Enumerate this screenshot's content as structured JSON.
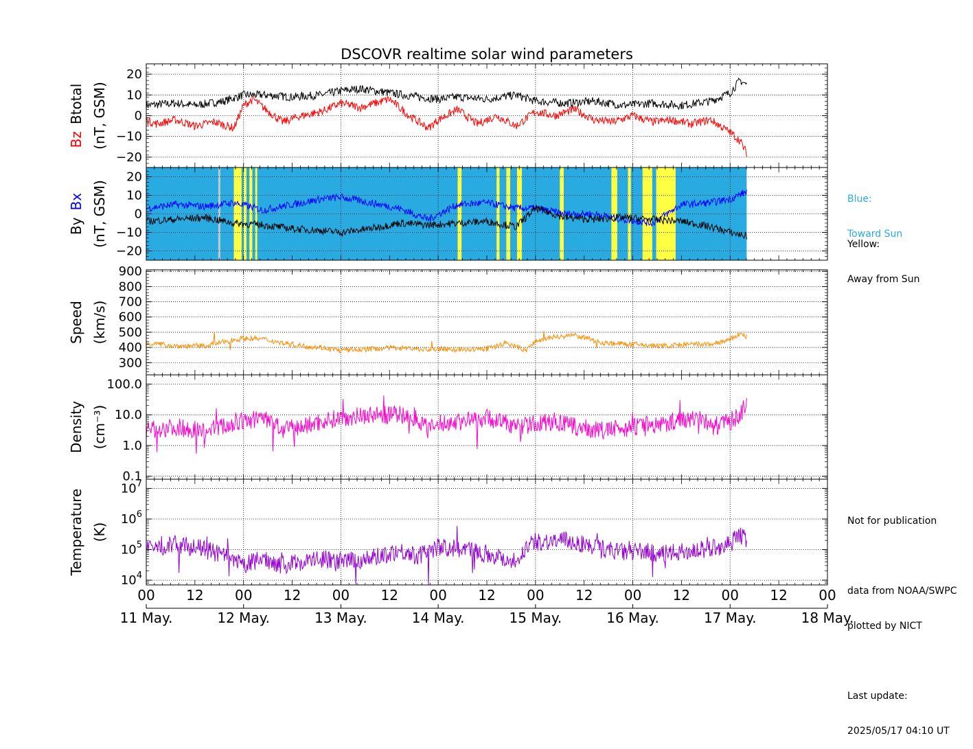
{
  "chart_data": {
    "type": "line",
    "title": "DSCOVR realtime solar wind parameters",
    "x_range_days": [
      0,
      7
    ],
    "data_end_day": 6.17,
    "hour_tick_labels": [
      "00",
      "12",
      "00",
      "12",
      "00",
      "12",
      "00",
      "12",
      "00",
      "12",
      "00",
      "12",
      "00",
      "12",
      "00"
    ],
    "date_labels": [
      "11 May.",
      "12 May.",
      "13 May.",
      "14 May.",
      "15 May.",
      "16 May.",
      "17 May.",
      "18 May."
    ],
    "panels": [
      {
        "id": "mag",
        "ylabel_line1": [
          "Bz",
          "Btotal"
        ],
        "ylabel_line2": "(nT, GSM)",
        "ylim": [
          -25,
          25
        ],
        "yticks": [
          -20,
          -10,
          0,
          10,
          20
        ],
        "scale": "linear",
        "series": [
          {
            "name": "Btotal",
            "color": "#000000",
            "x": [
              0,
              0.3,
              0.5,
              0.8,
              1.0,
              1.2,
              1.5,
              1.8,
              2.0,
              2.2,
              2.5,
              2.8,
              3.0,
              3.2,
              3.5,
              3.8,
              4.0,
              4.3,
              4.6,
              4.9,
              5.2,
              5.5,
              5.8,
              6.0,
              6.1,
              6.17
            ],
            "y": [
              5,
              6,
              5,
              7,
              10,
              10,
              9,
              10,
              12,
              13,
              11,
              9,
              8,
              9,
              8,
              10,
              7,
              6,
              7,
              5,
              6,
              5,
              7,
              11,
              17,
              15
            ]
          },
          {
            "name": "Bz",
            "color": "#ff0000",
            "x": [
              0,
              0.1,
              0.3,
              0.5,
              0.7,
              0.9,
              1.0,
              1.1,
              1.2,
              1.4,
              1.6,
              1.8,
              2.0,
              2.2,
              2.5,
              2.7,
              2.9,
              3.0,
              3.2,
              3.4,
              3.6,
              3.8,
              4.0,
              4.2,
              4.4,
              4.6,
              4.8,
              5.0,
              5.2,
              5.4,
              5.6,
              5.8,
              6.0,
              6.1,
              6.17
            ],
            "y": [
              -2,
              -4,
              -2,
              -5,
              -3,
              -6,
              5,
              8,
              4,
              -3,
              0,
              2,
              6,
              4,
              8,
              0,
              -6,
              -2,
              3,
              -4,
              0,
              -5,
              2,
              0,
              3,
              -2,
              -3,
              0,
              -3,
              -2,
              -4,
              -2,
              -8,
              -12,
              -18
            ]
          }
        ]
      },
      {
        "id": "bxby",
        "ylabel_line1": [
          "By",
          "Bx"
        ],
        "ylabel_line2": "(nT, GSM)",
        "ylim": [
          -25,
          25
        ],
        "yticks": [
          -20,
          -10,
          0,
          10,
          20
        ],
        "scale": "linear",
        "sector_colors": {
          "toward": "#29abe2",
          "away": "#ffff44",
          "unknown": "#c8c8c8"
        },
        "away_intervals": [
          [
            0.9,
            0.98
          ],
          [
            1.0,
            1.03
          ],
          [
            1.06,
            1.09
          ],
          [
            1.12,
            1.14
          ],
          [
            3.2,
            3.24
          ],
          [
            3.6,
            3.63
          ],
          [
            3.7,
            3.74
          ],
          [
            3.81,
            3.86
          ],
          [
            4.25,
            4.29
          ],
          [
            4.78,
            4.84
          ],
          [
            4.95,
            4.98
          ],
          [
            5.1,
            5.2
          ],
          [
            5.24,
            5.44
          ]
        ],
        "series": [
          {
            "name": "Bx",
            "color": "#0000ff",
            "x": [
              0,
              0.3,
              0.6,
              0.9,
              1.2,
              1.5,
              1.8,
              2.0,
              2.3,
              2.6,
              2.9,
              3.2,
              3.5,
              3.8,
              4.0,
              4.3,
              4.6,
              4.9,
              5.2,
              5.5,
              5.8,
              6.0,
              6.17
            ],
            "y": [
              3,
              5,
              4,
              6,
              2,
              5,
              8,
              9,
              6,
              3,
              -3,
              5,
              6,
              3,
              3,
              0,
              0,
              -3,
              -5,
              5,
              6,
              8,
              12
            ]
          },
          {
            "name": "By",
            "color": "#000000",
            "x": [
              0,
              0.3,
              0.6,
              0.9,
              1.2,
              1.5,
              1.8,
              2.0,
              2.3,
              2.6,
              2.9,
              3.2,
              3.5,
              3.8,
              4.0,
              4.3,
              4.6,
              4.9,
              5.2,
              5.5,
              5.8,
              6.0,
              6.17
            ],
            "y": [
              -4,
              -3,
              -2,
              -5,
              -6,
              -8,
              -9,
              -10,
              -8,
              -5,
              -6,
              -5,
              -4,
              -7,
              3,
              -2,
              -3,
              -2,
              -3,
              -4,
              -7,
              -10,
              -12
            ]
          }
        ]
      },
      {
        "id": "speed",
        "ylabel_line1": "Speed",
        "ylabel_line2": "(km/s)",
        "ylim": [
          220,
          910
        ],
        "yticks": [
          300,
          400,
          500,
          600,
          700,
          800,
          900
        ],
        "scale": "linear",
        "series": [
          {
            "name": "Speed",
            "color": "#ff8c00",
            "x": [
              0,
              0.3,
              0.6,
              0.9,
              1.0,
              1.2,
              1.4,
              1.6,
              1.8,
              2.0,
              2.3,
              2.6,
              2.9,
              3.0,
              3.3,
              3.5,
              3.7,
              3.9,
              4.0,
              4.2,
              4.4,
              4.7,
              5.0,
              5.3,
              5.6,
              5.8,
              6.0,
              6.1,
              6.17
            ],
            "y": [
              430,
              410,
              410,
              450,
              460,
              455,
              430,
              410,
              400,
              380,
              390,
              400,
              385,
              390,
              385,
              390,
              430,
              380,
              440,
              470,
              480,
              430,
              420,
              410,
              420,
              420,
              450,
              490,
              470
            ]
          }
        ]
      },
      {
        "id": "density",
        "ylabel_line1": "Density",
        "ylabel_line2": "(cm⁻³)",
        "ylim": [
          0.08,
          200
        ],
        "yticks": [
          0.1,
          1.0,
          10.0,
          100.0
        ],
        "ytick_labels": [
          "0.1",
          "1.0",
          "10.0",
          "100.0"
        ],
        "scale": "log",
        "series": [
          {
            "name": "Density",
            "color": "#ff00cc",
            "x": [
              0,
              0.3,
              0.6,
              0.9,
              1.0,
              1.2,
              1.4,
              1.6,
              1.8,
              2.0,
              2.3,
              2.6,
              2.8,
              2.9,
              3.0,
              3.2,
              3.5,
              3.8,
              4.0,
              4.2,
              4.4,
              4.7,
              5.0,
              5.3,
              5.5,
              5.7,
              5.8,
              6.0,
              6.1,
              6.17
            ],
            "y": [
              3,
              4,
              3,
              5,
              6,
              8,
              3,
              4,
              6,
              8,
              10,
              10,
              7,
              3,
              5,
              6,
              8,
              4,
              5,
              6,
              4,
              3,
              4,
              5,
              7,
              8,
              4,
              6,
              10,
              20
            ]
          }
        ]
      },
      {
        "id": "temperature",
        "ylabel_line1": "Temperature",
        "ylabel_line2": "(K)",
        "ylim": [
          7000,
          20000000
        ],
        "yticks": [
          10000,
          100000,
          1000000,
          10000000
        ],
        "ytick_exponents": [
          "4",
          "5",
          "6",
          "7"
        ],
        "scale": "log",
        "series": [
          {
            "name": "Temperature",
            "color": "#9400d3",
            "x": [
              0,
              0.3,
              0.5,
              0.7,
              0.9,
              1.0,
              1.2,
              1.4,
              1.6,
              1.8,
              2.0,
              2.3,
              2.6,
              2.8,
              3.0,
              3.3,
              3.6,
              3.8,
              4.0,
              4.3,
              4.6,
              4.9,
              5.1,
              5.3,
              5.6,
              5.8,
              6.0,
              6.1,
              6.17
            ],
            "y": [
              100000,
              150000,
              120000,
              80000,
              40000,
              30000,
              50000,
              30000,
              40000,
              50000,
              40000,
              50000,
              90000,
              60000,
              120000,
              100000,
              60000,
              40000,
              180000,
              200000,
              120000,
              80000,
              90000,
              70000,
              90000,
              110000,
              150000,
              300000,
              200000
            ]
          }
        ]
      }
    ]
  },
  "legend_blue": [
    "Blue:",
    "Toward Sun"
  ],
  "legend_yellow": [
    "Yellow:",
    "Away from Sun"
  ],
  "notes": {
    "line1": "Not for publication",
    "line2": "data from NOAA/SWPC",
    "line3": "plotted by NICT",
    "line4": "Last update:",
    "line5": "2025/05/17 04:10 UT"
  }
}
